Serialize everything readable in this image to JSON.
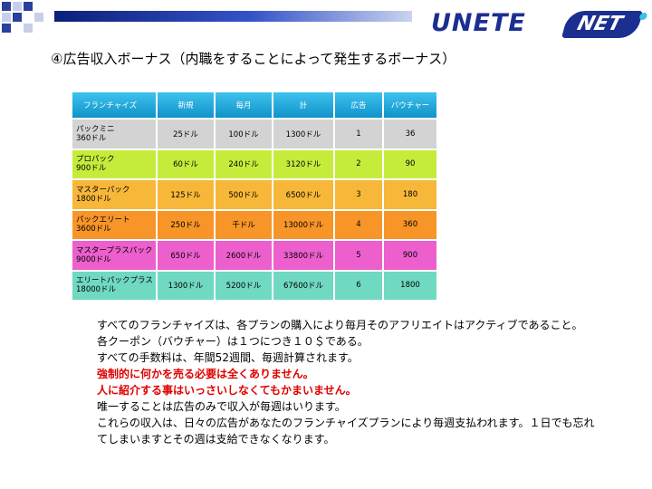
{
  "header": {
    "logo_left": "UNETE",
    "logo_right": "NET",
    "title": "④広告収入ボーナス（内職をすることによって発生するボーナス）"
  },
  "colors": {
    "header_bar": "#1a2f8f",
    "table_header": "#1aa8d8",
    "emphasis": "#e00000"
  },
  "table": {
    "headers": [
      "フランチャイズ",
      "新規",
      "毎月",
      "計",
      "広告",
      "バウチャー"
    ],
    "rows": [
      {
        "name": "パックミニ\n360ドル",
        "new": "25ドル",
        "monthly": "100ドル",
        "total": "1300ドル",
        "ad": "1",
        "voucher": "36",
        "color": "#d3d3d3"
      },
      {
        "name": "プロパック\n900ドル",
        "new": "60ドル",
        "monthly": "240ドル",
        "total": "3120ドル",
        "ad": "2",
        "voucher": "90",
        "color": "#c6ec3b"
      },
      {
        "name": "マスターパック\n1800ドル",
        "new": "125ドル",
        "monthly": "500ドル",
        "total": "6500ドル",
        "ad": "3",
        "voucher": "180",
        "color": "#f7b739"
      },
      {
        "name": "パックエリート\n3600ドル",
        "new": "250ドル",
        "monthly": "千ドル",
        "total": "13000ドル",
        "ad": "4",
        "voucher": "360",
        "color": "#f79528"
      },
      {
        "name": "マスタープラスパック\n9000ドル",
        "new": "650ドル",
        "monthly": "2600ドル",
        "total": "33800ドル",
        "ad": "5",
        "voucher": "900",
        "color": "#ec5fcc"
      },
      {
        "name": "エリートパックプラス\n18000ドル",
        "new": "1300ドル",
        "monthly": "5200ドル",
        "total": "67600ドル",
        "ad": "6",
        "voucher": "1800",
        "color": "#6fd9c1"
      }
    ]
  },
  "paragraph": {
    "line1": "すべてのフランチャイズは、各プランの購入により毎月そのアフリエイトはアクティブであること。",
    "line2": "各クーポン（バウチャー）は１つにつき１０＄である。",
    "line3": "すべての手数料は、年間52週間、毎週計算されます。",
    "line4": "強制的に何かを売る必要は全くありません。",
    "line5": "人に紹介する事はいっさいしなくてもかまいません。",
    "line6": "唯一することは広告のみで収入が毎週はいります。",
    "line7": "これらの収入は、日々の広告があなたのフランチャイズプランにより毎週支払われます。１日でも忘れてしまいますとその週は支給できなくなります。"
  }
}
